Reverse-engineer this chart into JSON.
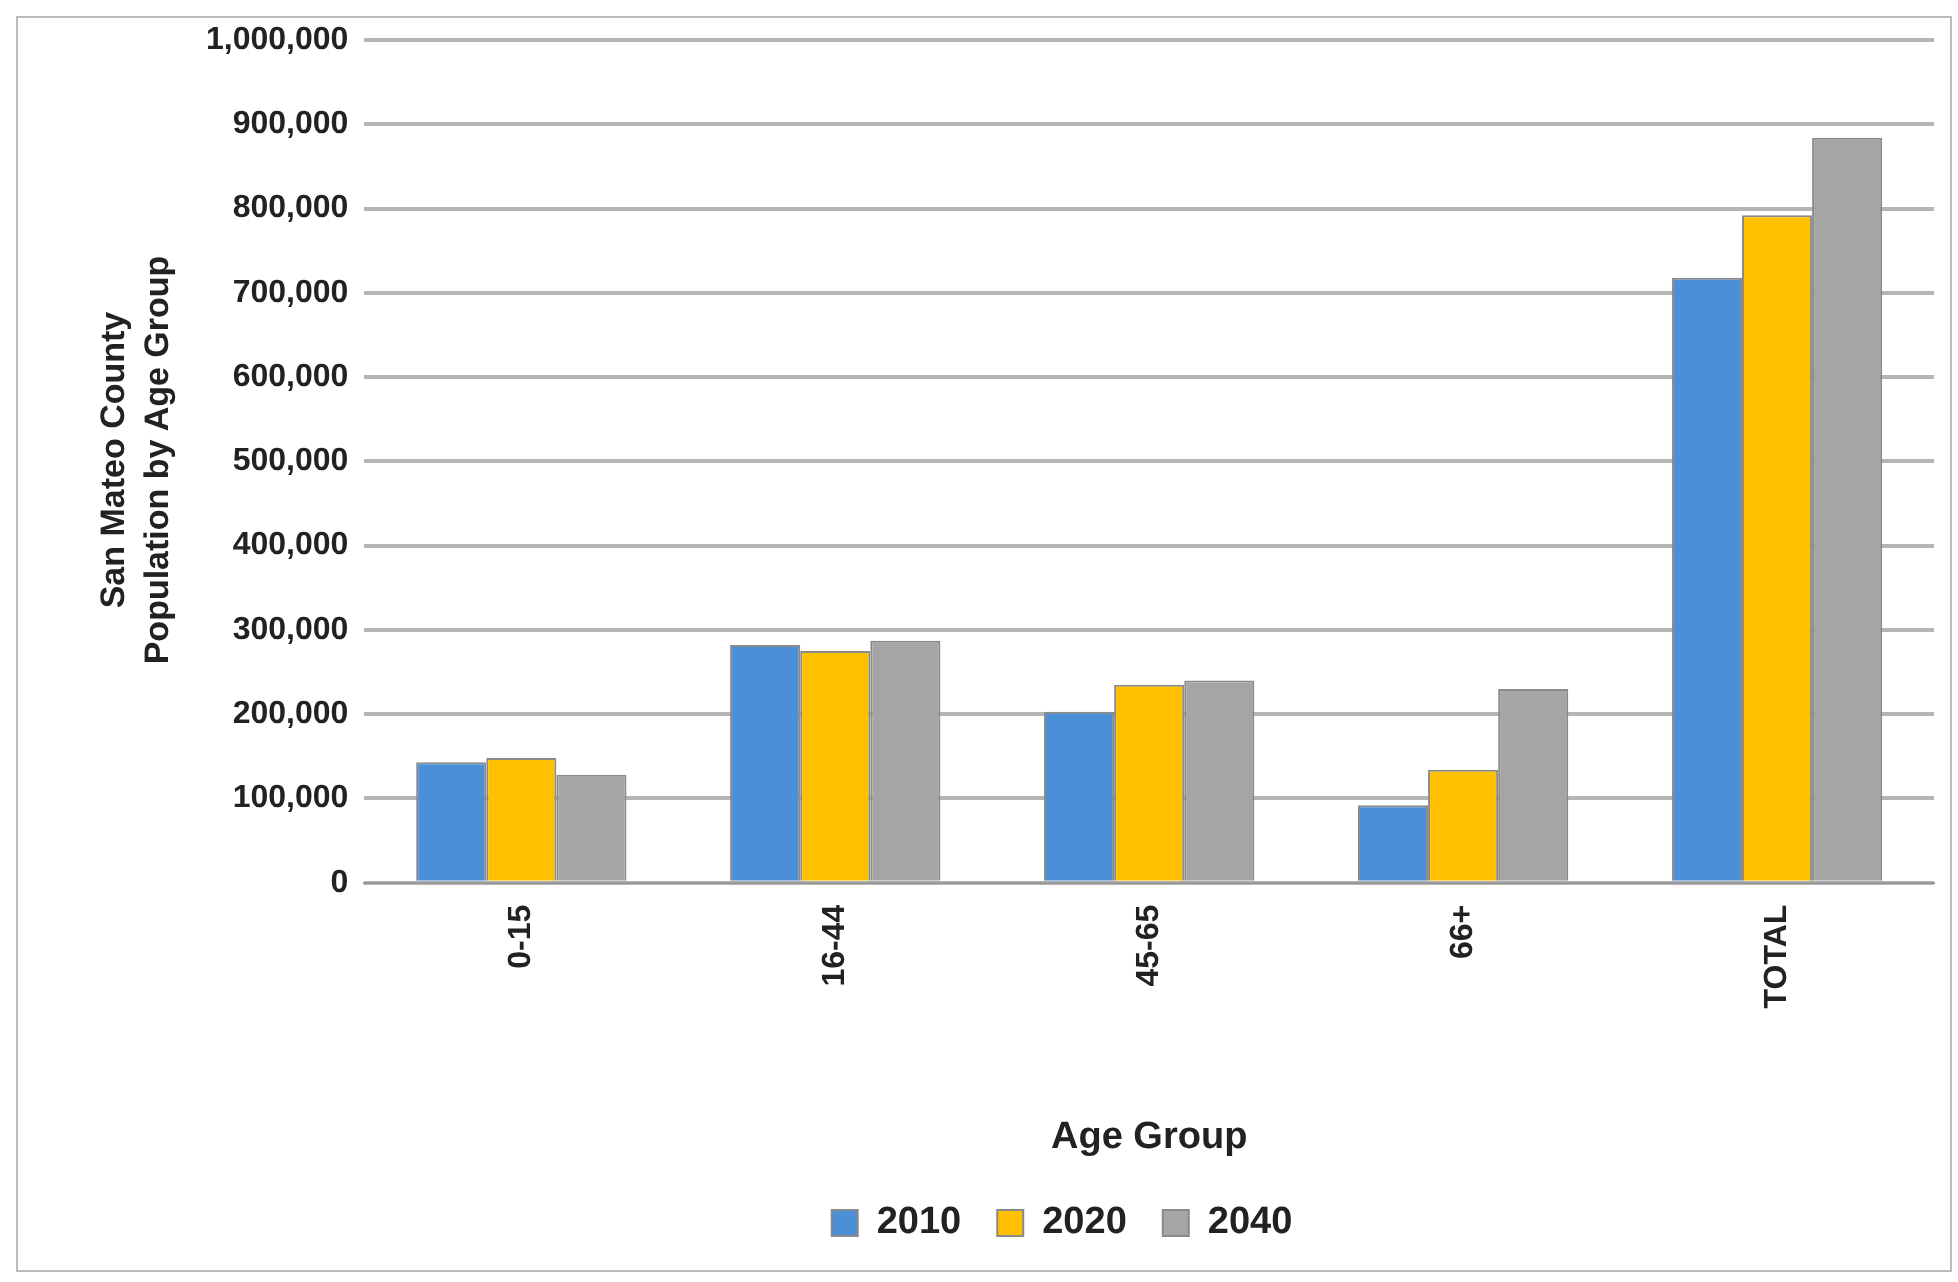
{
  "chart_data": {
    "type": "bar",
    "xlabel": "Age Group",
    "ylabel": "San Mateo County Population by Age Group",
    "categories": [
      "0-15",
      "16-44",
      "45-65",
      "66+",
      "TOTAL"
    ],
    "series": [
      {
        "name": "2010",
        "color": "#4a8fd8",
        "values": [
          143000,
          282000,
          203000,
          92000,
          718000
        ]
      },
      {
        "name": "2020",
        "color": "#ffc000",
        "values": [
          148000,
          275000,
          235000,
          134000,
          792000
        ]
      },
      {
        "name": "2040",
        "color": "#a5a5a5",
        "values": [
          128000,
          287000,
          240000,
          230000,
          884000
        ]
      }
    ],
    "ylim": [
      0,
      1000000
    ],
    "yticks": [
      0,
      {
        "value": 100000,
        "label": "100,000"
      },
      {
        "value": 200000,
        "label": "200,000"
      },
      {
        "value": 300000,
        "label": "300,000"
      },
      {
        "value": 400000,
        "label": "400,000"
      },
      {
        "value": 500000,
        "label": "500,000"
      },
      {
        "value": 600000,
        "label": "600,000"
      },
      {
        "value": 700000,
        "label": "700,000"
      },
      {
        "value": 800000,
        "label": "800,000"
      },
      {
        "value": 900000,
        "label": "900,000"
      },
      {
        "value": 1000000,
        "label": "1,000,000"
      }
    ],
    "grid": "y",
    "legend": "bottom"
  }
}
